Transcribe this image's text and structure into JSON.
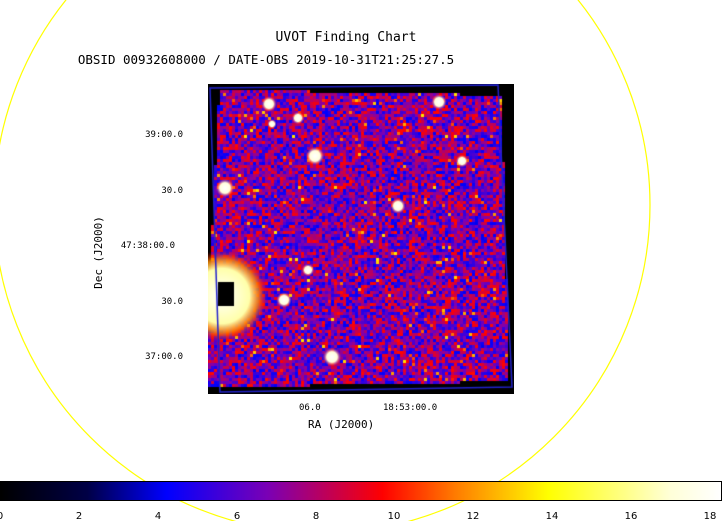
{
  "header": {
    "title": "UVOT Finding Chart",
    "subtitle": "OBSID 00932608000 / DATE-OBS 2019-10-31T21:25:27.5"
  },
  "axes": {
    "ylabel": "Dec (J2000)",
    "xlabel": "RA (J2000)",
    "yticks": [
      "39:00.0",
      "30.0",
      "47:38:00.0",
      "30.0",
      "37:00.0"
    ],
    "xticks": [
      "06.0",
      "18:53:00.0"
    ]
  },
  "colorbar": {
    "ticks": [
      "0",
      "2",
      "4",
      "6",
      "8",
      "10",
      "12",
      "14",
      "16",
      "18"
    ]
  },
  "colors": {
    "circle": "#ffff00",
    "frame": "#2222cc",
    "background": "#ffffff"
  }
}
